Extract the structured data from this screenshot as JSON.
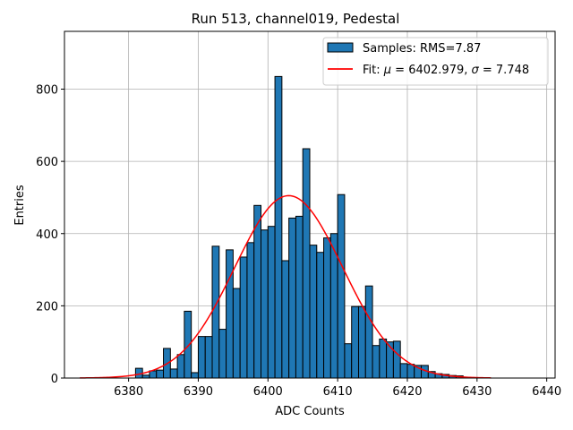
{
  "colors": {
    "bar": "#1f77b4",
    "bar_edge": "#000000",
    "fit": "#ff0000",
    "grid": "#b0b0b0"
  },
  "chart_data": {
    "type": "bar",
    "title": "Run 513, channel019, Pedestal",
    "xlabel": "ADC Counts",
    "ylabel": "Entries",
    "xlim": [
      6370.8,
      6441.2
    ],
    "ylim": [
      0,
      960
    ],
    "xticks": [
      6380,
      6390,
      6400,
      6410,
      6420,
      6430,
      6440
    ],
    "yticks": [
      0,
      200,
      400,
      600,
      800
    ],
    "grid": true,
    "legend_position": "top-right",
    "histogram": {
      "name": "Samples: RMS=7.87",
      "bin_width": 1,
      "bin_starts": [
        6381,
        6382,
        6383,
        6384,
        6385,
        6386,
        6387,
        6388,
        6389,
        6390,
        6391,
        6392,
        6393,
        6394,
        6395,
        6396,
        6397,
        6398,
        6399,
        6400,
        6401,
        6402,
        6403,
        6404,
        6405,
        6406,
        6407,
        6408,
        6409,
        6410,
        6411,
        6412,
        6413,
        6414,
        6415,
        6416,
        6417,
        6418,
        6419,
        6420,
        6421,
        6422,
        6423,
        6424,
        6425,
        6426,
        6427,
        6428
      ],
      "counts": [
        27,
        8,
        20,
        22,
        82,
        25,
        65,
        185,
        15,
        115,
        115,
        365,
        135,
        355,
        248,
        335,
        375,
        478,
        410,
        420,
        835,
        325,
        443,
        448,
        635,
        368,
        348,
        388,
        400,
        508,
        95,
        198,
        198,
        255,
        90,
        108,
        100,
        102,
        40,
        38,
        35,
        35,
        18,
        12,
        10,
        7,
        6,
        2
      ]
    },
    "fit": {
      "name_prefix": "Fit: ",
      "mu_symbol": "μ",
      "sigma_symbol": "σ",
      "mu": 6402.979,
      "sigma": 7.748,
      "amplitude": 505,
      "x_range": [
        6373,
        6432
      ]
    }
  }
}
